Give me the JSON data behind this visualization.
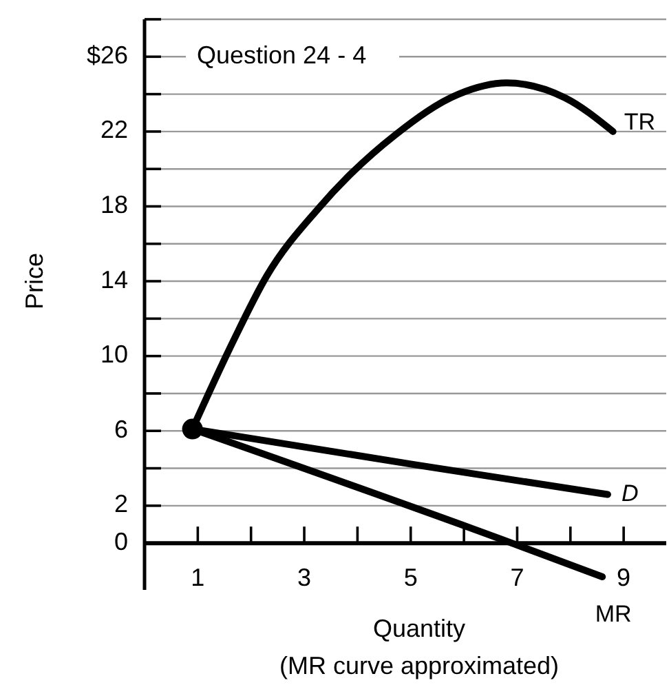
{
  "chart_data": {
    "type": "line",
    "title": "Question 24 - 4",
    "xlabel": "Quantity",
    "ylabel": "Price",
    "annotations": [
      "(MR curve approximated)"
    ],
    "xlim": [
      0,
      9.8
    ],
    "ylim": [
      -2.5,
      28
    ],
    "xticks": [
      1,
      {
        "value": 2,
        "label": null
      },
      3,
      {
        "value": 4,
        "label": null
      },
      5,
      {
        "value": 6,
        "label": null
      },
      7,
      {
        "value": 8,
        "label": null
      },
      9
    ],
    "yticks": [
      0,
      2,
      {
        "value": 4,
        "label": null
      },
      6,
      {
        "value": 8,
        "label": null
      },
      10,
      {
        "value": 12,
        "label": null
      },
      14,
      {
        "value": 16,
        "label": null
      },
      18,
      {
        "value": 20,
        "label": null
      },
      22,
      {
        "value": 24,
        "label": null
      },
      {
        "value": 26,
        "label": "$26"
      },
      {
        "value": 28,
        "label": null
      }
    ],
    "grid": "y",
    "marker": "none",
    "line_style": "solid",
    "series": [
      {
        "name": "TR",
        "color": "#000000",
        "x": [
          0.9,
          1.65,
          2.3,
          3.27,
          4.7,
          5.9,
          6.8,
          7.9,
          8.8
        ],
        "values": [
          6.1,
          10.7,
          14.3,
          17.9,
          21.8,
          24,
          24.6,
          23.8,
          22
        ]
      },
      {
        "name": "D",
        "color": "#000000",
        "x": [
          0.9,
          5.06,
          8.7
        ],
        "values": [
          6.1,
          4.2,
          2.6
        ]
      },
      {
        "name": "MR",
        "color": "#000000",
        "x": [
          0.9,
          6.9,
          8.6
        ],
        "values": [
          6.1,
          0,
          -1.8
        ]
      },
      {
        "type": "scatter",
        "color": "#000000",
        "marker": "circle",
        "x": [
          0.9
        ],
        "values": [
          6.1
        ]
      }
    ]
  }
}
